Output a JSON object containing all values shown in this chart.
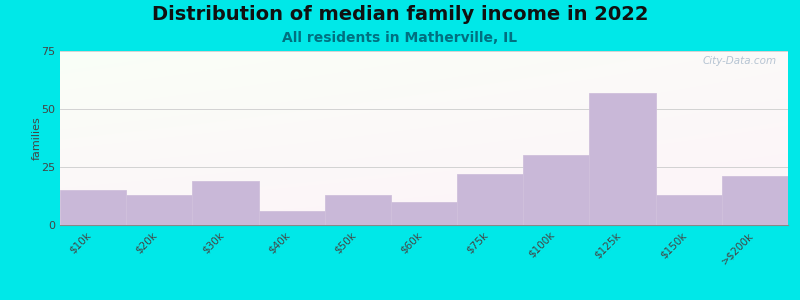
{
  "title": "Distribution of median family income in 2022",
  "subtitle": "All residents in Matherville, IL",
  "categories": [
    "$10k",
    "$20k",
    "$30k",
    "$40k",
    "$50k",
    "$60k",
    "$75k",
    "$100k",
    "$125k",
    "$150k",
    ">$200k"
  ],
  "values": [
    15,
    13,
    19,
    6,
    13,
    10,
    22,
    30,
    57,
    13,
    21
  ],
  "bar_color": "#c9b8d8",
  "bar_edge_color": "#d0c0dc",
  "ylabel": "families",
  "ylim": [
    0,
    75
  ],
  "yticks": [
    0,
    25,
    50,
    75
  ],
  "bg_color_topleft": "#d8edd8",
  "bg_color_white": "#f8fff8",
  "outer_bg": "#00e8e8",
  "title_fontsize": 14,
  "subtitle_fontsize": 10,
  "subtitle_color": "#007080",
  "watermark": "City-Data.com",
  "watermark_color": "#aabbcc"
}
